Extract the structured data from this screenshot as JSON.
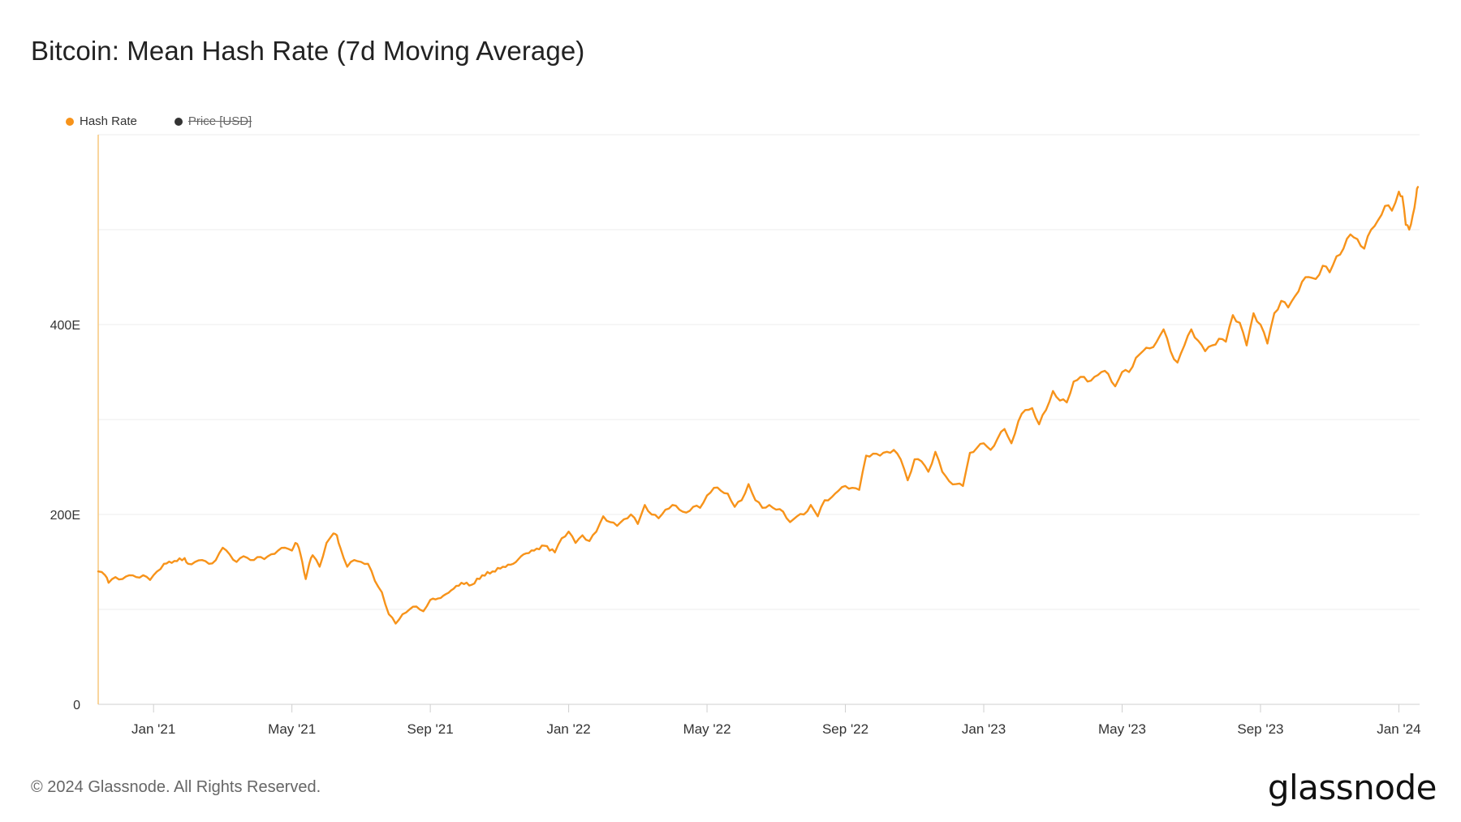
{
  "title": "Bitcoin: Mean Hash Rate (7d Moving Average)",
  "legend": [
    {
      "label": "Hash Rate",
      "color": "#f7931a",
      "active": true
    },
    {
      "label": "Price [USD]",
      "color": "#333333",
      "active": false
    }
  ],
  "footer": "© 2024 Glassnode. All Rights Reserved.",
  "brand": "glassnode",
  "chart_data": {
    "type": "line",
    "title": "Bitcoin: Mean Hash Rate (7d Moving Average)",
    "xlabel": "",
    "ylabel": "",
    "x_range_months": [
      -1.6,
      36.6
    ],
    "ylim": [
      0,
      600
    ],
    "grid": true,
    "legend_position": "top-left",
    "y_ticks": [
      {
        "value": 0,
        "label": "0"
      },
      {
        "value": 200,
        "label": "200E"
      },
      {
        "value": 400,
        "label": "400E"
      }
    ],
    "x_ticks": [
      {
        "month": 0,
        "label": "Jan '21"
      },
      {
        "month": 4,
        "label": "May '21"
      },
      {
        "month": 8,
        "label": "Sep '21"
      },
      {
        "month": 12,
        "label": "Jan '22"
      },
      {
        "month": 16,
        "label": "May '22"
      },
      {
        "month": 20,
        "label": "Sep '22"
      },
      {
        "month": 24,
        "label": "Jan '23"
      },
      {
        "month": 28,
        "label": "May '23"
      },
      {
        "month": 32,
        "label": "Sep '23"
      },
      {
        "month": 36,
        "label": "Jan '24"
      }
    ],
    "series": [
      {
        "name": "Hash Rate",
        "color": "#f7931a",
        "unit": "EH/s",
        "points": [
          [
            -1.6,
            140
          ],
          [
            -1.4,
            136
          ],
          [
            -1.3,
            128
          ],
          [
            -1.1,
            134
          ],
          [
            -0.9,
            132
          ],
          [
            -0.7,
            136
          ],
          [
            -0.5,
            134
          ],
          [
            -0.3,
            136
          ],
          [
            -0.1,
            131
          ],
          [
            0.1,
            140
          ],
          [
            0.3,
            148
          ],
          [
            0.6,
            151
          ],
          [
            0.9,
            154
          ],
          [
            1.0,
            148
          ],
          [
            1.2,
            150
          ],
          [
            1.4,
            152
          ],
          [
            1.6,
            148
          ],
          [
            1.8,
            152
          ],
          [
            2.0,
            165
          ],
          [
            2.2,
            158
          ],
          [
            2.4,
            150
          ],
          [
            2.6,
            156
          ],
          [
            2.8,
            152
          ],
          [
            3.0,
            155
          ],
          [
            3.2,
            153
          ],
          [
            3.4,
            158
          ],
          [
            3.6,
            162
          ],
          [
            3.8,
            165
          ],
          [
            4.0,
            162
          ],
          [
            4.1,
            170
          ],
          [
            4.2,
            165
          ],
          [
            4.3,
            150
          ],
          [
            4.4,
            132
          ],
          [
            4.5,
            148
          ],
          [
            4.6,
            157
          ],
          [
            4.8,
            145
          ],
          [
            5.0,
            170
          ],
          [
            5.2,
            180
          ],
          [
            5.3,
            178
          ],
          [
            5.4,
            165
          ],
          [
            5.6,
            145
          ],
          [
            5.8,
            152
          ],
          [
            6.0,
            150
          ],
          [
            6.2,
            148
          ],
          [
            6.4,
            130
          ],
          [
            6.6,
            118
          ],
          [
            6.8,
            95
          ],
          [
            7.0,
            85
          ],
          [
            7.2,
            95
          ],
          [
            7.4,
            100
          ],
          [
            7.6,
            103
          ],
          [
            7.8,
            98
          ],
          [
            8.0,
            110
          ],
          [
            8.3,
            112
          ],
          [
            8.6,
            120
          ],
          [
            8.9,
            128
          ],
          [
            9.2,
            126
          ],
          [
            9.5,
            136
          ],
          [
            9.8,
            140
          ],
          [
            10.1,
            145
          ],
          [
            10.4,
            148
          ],
          [
            10.7,
            158
          ],
          [
            11.0,
            162
          ],
          [
            11.3,
            167
          ],
          [
            11.6,
            160
          ],
          [
            11.8,
            175
          ],
          [
            12.0,
            182
          ],
          [
            12.2,
            170
          ],
          [
            12.4,
            178
          ],
          [
            12.6,
            172
          ],
          [
            12.8,
            182
          ],
          [
            13.0,
            198
          ],
          [
            13.2,
            192
          ],
          [
            13.4,
            188
          ],
          [
            13.6,
            195
          ],
          [
            13.8,
            200
          ],
          [
            14.0,
            190
          ],
          [
            14.2,
            210
          ],
          [
            14.4,
            200
          ],
          [
            14.6,
            196
          ],
          [
            14.8,
            205
          ],
          [
            15.0,
            210
          ],
          [
            15.2,
            205
          ],
          [
            15.4,
            202
          ],
          [
            15.6,
            208
          ],
          [
            15.8,
            207
          ],
          [
            16.0,
            220
          ],
          [
            16.2,
            228
          ],
          [
            16.4,
            225
          ],
          [
            16.6,
            222
          ],
          [
            16.8,
            208
          ],
          [
            17.0,
            215
          ],
          [
            17.2,
            232
          ],
          [
            17.4,
            215
          ],
          [
            17.6,
            207
          ],
          [
            17.8,
            210
          ],
          [
            18.0,
            205
          ],
          [
            18.2,
            203
          ],
          [
            18.4,
            192
          ],
          [
            18.6,
            198
          ],
          [
            18.8,
            200
          ],
          [
            19.0,
            210
          ],
          [
            19.2,
            198
          ],
          [
            19.4,
            215
          ],
          [
            19.6,
            218
          ],
          [
            19.8,
            225
          ],
          [
            20.0,
            230
          ],
          [
            20.2,
            228
          ],
          [
            20.4,
            226
          ],
          [
            20.6,
            262
          ],
          [
            20.8,
            264
          ],
          [
            21.0,
            262
          ],
          [
            21.2,
            266
          ],
          [
            21.4,
            268
          ],
          [
            21.6,
            258
          ],
          [
            21.8,
            236
          ],
          [
            22.0,
            258
          ],
          [
            22.2,
            256
          ],
          [
            22.4,
            245
          ],
          [
            22.6,
            266
          ],
          [
            22.8,
            245
          ],
          [
            23.0,
            235
          ],
          [
            23.2,
            232
          ],
          [
            23.4,
            230
          ],
          [
            23.6,
            265
          ],
          [
            23.8,
            270
          ],
          [
            24.0,
            275
          ],
          [
            24.2,
            268
          ],
          [
            24.4,
            280
          ],
          [
            24.6,
            290
          ],
          [
            24.8,
            275
          ],
          [
            25.0,
            298
          ],
          [
            25.2,
            310
          ],
          [
            25.4,
            312
          ],
          [
            25.6,
            295
          ],
          [
            25.8,
            310
          ],
          [
            26.0,
            330
          ],
          [
            26.2,
            320
          ],
          [
            26.4,
            318
          ],
          [
            26.6,
            340
          ],
          [
            26.8,
            345
          ],
          [
            27.0,
            340
          ],
          [
            27.2,
            345
          ],
          [
            27.4,
            350
          ],
          [
            27.6,
            348
          ],
          [
            27.8,
            335
          ],
          [
            28.0,
            350
          ],
          [
            28.2,
            350
          ],
          [
            28.4,
            365
          ],
          [
            28.6,
            372
          ],
          [
            28.8,
            375
          ],
          [
            29.0,
            382
          ],
          [
            29.2,
            395
          ],
          [
            29.4,
            372
          ],
          [
            29.6,
            360
          ],
          [
            29.8,
            378
          ],
          [
            30.0,
            395
          ],
          [
            30.2,
            383
          ],
          [
            30.4,
            372
          ],
          [
            30.6,
            378
          ],
          [
            30.8,
            385
          ],
          [
            31.0,
            382
          ],
          [
            31.2,
            410
          ],
          [
            31.4,
            402
          ],
          [
            31.6,
            378
          ],
          [
            31.8,
            412
          ],
          [
            32.0,
            400
          ],
          [
            32.2,
            380
          ],
          [
            32.4,
            412
          ],
          [
            32.6,
            425
          ],
          [
            32.8,
            418
          ],
          [
            33.0,
            430
          ],
          [
            33.2,
            445
          ],
          [
            33.4,
            450
          ],
          [
            33.6,
            448
          ],
          [
            33.8,
            462
          ],
          [
            34.0,
            455
          ],
          [
            34.2,
            472
          ],
          [
            34.4,
            480
          ],
          [
            34.6,
            495
          ],
          [
            34.8,
            490
          ],
          [
            35.0,
            480
          ],
          [
            35.2,
            500
          ],
          [
            35.4,
            510
          ],
          [
            35.6,
            525
          ],
          [
            35.8,
            520
          ],
          [
            36.0,
            540
          ],
          [
            36.1,
            535
          ],
          [
            36.2,
            505
          ],
          [
            36.3,
            500
          ],
          [
            36.4,
            515
          ],
          [
            36.5,
            535
          ],
          [
            36.55,
            545
          ]
        ]
      }
    ]
  }
}
